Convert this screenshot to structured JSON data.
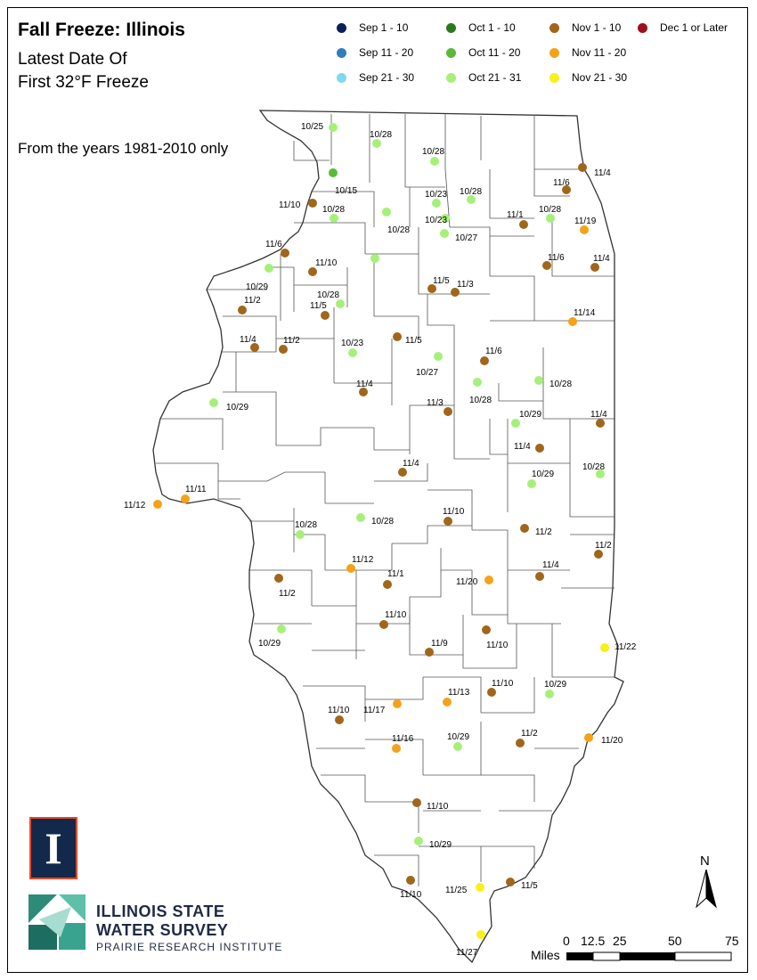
{
  "title": "Fall Freeze: Illinois",
  "subtitle1": "Latest Date Of",
  "subtitle2": "First 32°F Freeze",
  "note": "From the years 1981-2010 only",
  "legend": [
    {
      "label": "Sep 1 - 10",
      "color": "#0c1f5c"
    },
    {
      "label": "Sep 11 - 20",
      "color": "#2f7ec0"
    },
    {
      "label": "Sep 21 - 30",
      "color": "#7fd9f0"
    },
    {
      "label": "Oct 1 - 10",
      "color": "#2a7a1a"
    },
    {
      "label": "Oct 11 - 20",
      "color": "#5cb837"
    },
    {
      "label": "Oct 21 - 31",
      "color": "#a6f07a"
    },
    {
      "label": "Nov 1 - 10",
      "color": "#a0661a"
    },
    {
      "label": "Nov 11 - 20",
      "color": "#f5a218"
    },
    {
      "label": "Nov 21 - 30",
      "color": "#f8f018"
    },
    {
      "label": "Dec 1 or Later",
      "color": "#a0101a"
    }
  ],
  "stations": [
    {
      "date": "10/25",
      "cls": "Oct 21 - 31"
    },
    {
      "date": "10/28",
      "cls": "Oct 21 - 31"
    },
    {
      "date": "10/28",
      "cls": "Oct 21 - 31"
    },
    {
      "date": "10/15",
      "cls": "Oct 11 - 20"
    },
    {
      "date": "11/4",
      "cls": "Nov 1 - 10"
    },
    {
      "date": "11/6",
      "cls": "Nov 1 - 10"
    },
    {
      "date": "11/10",
      "cls": "Nov 1 - 10"
    },
    {
      "date": "10/28",
      "cls": "Oct 21 - 31"
    },
    {
      "date": "10/28",
      "cls": "Oct 21 - 31"
    },
    {
      "date": "10/23",
      "cls": "Oct 21 - 31"
    },
    {
      "date": "10/28",
      "cls": "Oct 21 - 31"
    },
    {
      "date": "10/23",
      "cls": "Oct 21 - 31"
    },
    {
      "date": "10/27",
      "cls": "Oct 21 - 31"
    },
    {
      "date": "11/1",
      "cls": "Nov 1 - 10"
    },
    {
      "date": "10/28",
      "cls": "Oct 21 - 31"
    },
    {
      "date": "11/19",
      "cls": "Nov 11 - 20"
    },
    {
      "date": "11/6",
      "cls": "Nov 1 - 10"
    },
    {
      "date": "11/10",
      "cls": "Nov 1 - 10"
    },
    {
      "date": "10/29",
      "cls": "Oct 21 - 31"
    },
    {
      "date": "",
      "cls": "Oct 21 - 31"
    },
    {
      "date": "11/6",
      "cls": "Nov 1 - 10"
    },
    {
      "date": "11/4",
      "cls": "Nov 1 - 10"
    },
    {
      "date": "11/5",
      "cls": "Nov 1 - 10"
    },
    {
      "date": "11/3",
      "cls": "Nov 1 - 10"
    },
    {
      "date": "10/28",
      "cls": "Oct 21 - 31"
    },
    {
      "date": "11/5",
      "cls": "Nov 1 - 10"
    },
    {
      "date": "11/2",
      "cls": "Nov 1 - 10"
    },
    {
      "date": "11/14",
      "cls": "Nov 11 - 20"
    },
    {
      "date": "11/4",
      "cls": "Nov 1 - 10"
    },
    {
      "date": "11/2",
      "cls": "Nov 1 - 10"
    },
    {
      "date": "10/23",
      "cls": "Oct 21 - 31"
    },
    {
      "date": "11/5",
      "cls": "Nov 1 - 10"
    },
    {
      "date": "11/6",
      "cls": "Nov 1 - 10"
    },
    {
      "date": "10/27",
      "cls": "Oct 21 - 31"
    },
    {
      "date": "11/4",
      "cls": "Nov 1 - 10"
    },
    {
      "date": "10/28",
      "cls": "Oct 21 - 31"
    },
    {
      "date": "10/28",
      "cls": "Oct 21 - 31"
    },
    {
      "date": "10/29",
      "cls": "Oct 21 - 31"
    },
    {
      "date": "11/3",
      "cls": "Nov 1 - 10"
    },
    {
      "date": "10/29",
      "cls": "Oct 21 - 31"
    },
    {
      "date": "11/4",
      "cls": "Nov 1 - 10"
    },
    {
      "date": "11/4",
      "cls": "Nov 1 - 10"
    },
    {
      "date": "11/4",
      "cls": "Nov 1 - 10"
    },
    {
      "date": "10/29",
      "cls": "Oct 21 - 31"
    },
    {
      "date": "10/28",
      "cls": "Oct 21 - 31"
    },
    {
      "date": "11/12",
      "cls": "Nov 11 - 20"
    },
    {
      "date": "11/11",
      "cls": "Nov 11 - 20"
    },
    {
      "date": "10/28",
      "cls": "Oct 21 - 31"
    },
    {
      "date": "10/28",
      "cls": "Oct 21 - 31"
    },
    {
      "date": "11/10",
      "cls": "Nov 1 - 10"
    },
    {
      "date": "11/2",
      "cls": "Nov 1 - 10"
    },
    {
      "date": "11/2",
      "cls": "Nov 1 - 10"
    },
    {
      "date": "11/12",
      "cls": "Nov 11 - 20"
    },
    {
      "date": "11/1",
      "cls": "Nov 1 - 10"
    },
    {
      "date": "11/20",
      "cls": "Nov 11 - 20"
    },
    {
      "date": "11/4",
      "cls": "Nov 1 - 10"
    },
    {
      "date": "11/2",
      "cls": "Nov 1 - 10"
    },
    {
      "date": "10/29",
      "cls": "Oct 21 - 31"
    },
    {
      "date": "11/10",
      "cls": "Nov 1 - 10"
    },
    {
      "date": "11/9",
      "cls": "Nov 1 - 10"
    },
    {
      "date": "11/10",
      "cls": "Nov 1 - 10"
    },
    {
      "date": "11/22",
      "cls": "Nov 21 - 30"
    },
    {
      "date": "11/10",
      "cls": "Nov 1 - 10"
    },
    {
      "date": "11/17",
      "cls": "Nov 11 - 20"
    },
    {
      "date": "11/13",
      "cls": "Nov 11 - 20"
    },
    {
      "date": "11/10",
      "cls": "Nov 1 - 10"
    },
    {
      "date": "10/29",
      "cls": "Oct 21 - 31"
    },
    {
      "date": "11/16",
      "cls": "Nov 11 - 20"
    },
    {
      "date": "10/29",
      "cls": "Oct 21 - 31"
    },
    {
      "date": "11/2",
      "cls": "Nov 1 - 10"
    },
    {
      "date": "11/20",
      "cls": "Nov 11 - 20"
    },
    {
      "date": "11/10",
      "cls": "Nov 1 - 10"
    },
    {
      "date": "10/29",
      "cls": "Oct 21 - 31"
    },
    {
      "date": "11/10",
      "cls": "Nov 1 - 10"
    },
    {
      "date": "11/25",
      "cls": "Nov 21 - 30"
    },
    {
      "date": "11/5",
      "cls": "Nov 1 - 10"
    },
    {
      "date": "11/27",
      "cls": "Nov 21 - 30"
    }
  ],
  "logo": {
    "letter": "I"
  },
  "organization": {
    "line1": "ILLINOIS STATE",
    "line2": "WATER SURVEY",
    "line3": "PRAIRIE RESEARCH INSTITUTE"
  },
  "scale_bar": {
    "unit_label": "Miles",
    "ticks": [
      "0",
      "12.5",
      "25",
      "50",
      "75"
    ]
  },
  "north_label": "N"
}
